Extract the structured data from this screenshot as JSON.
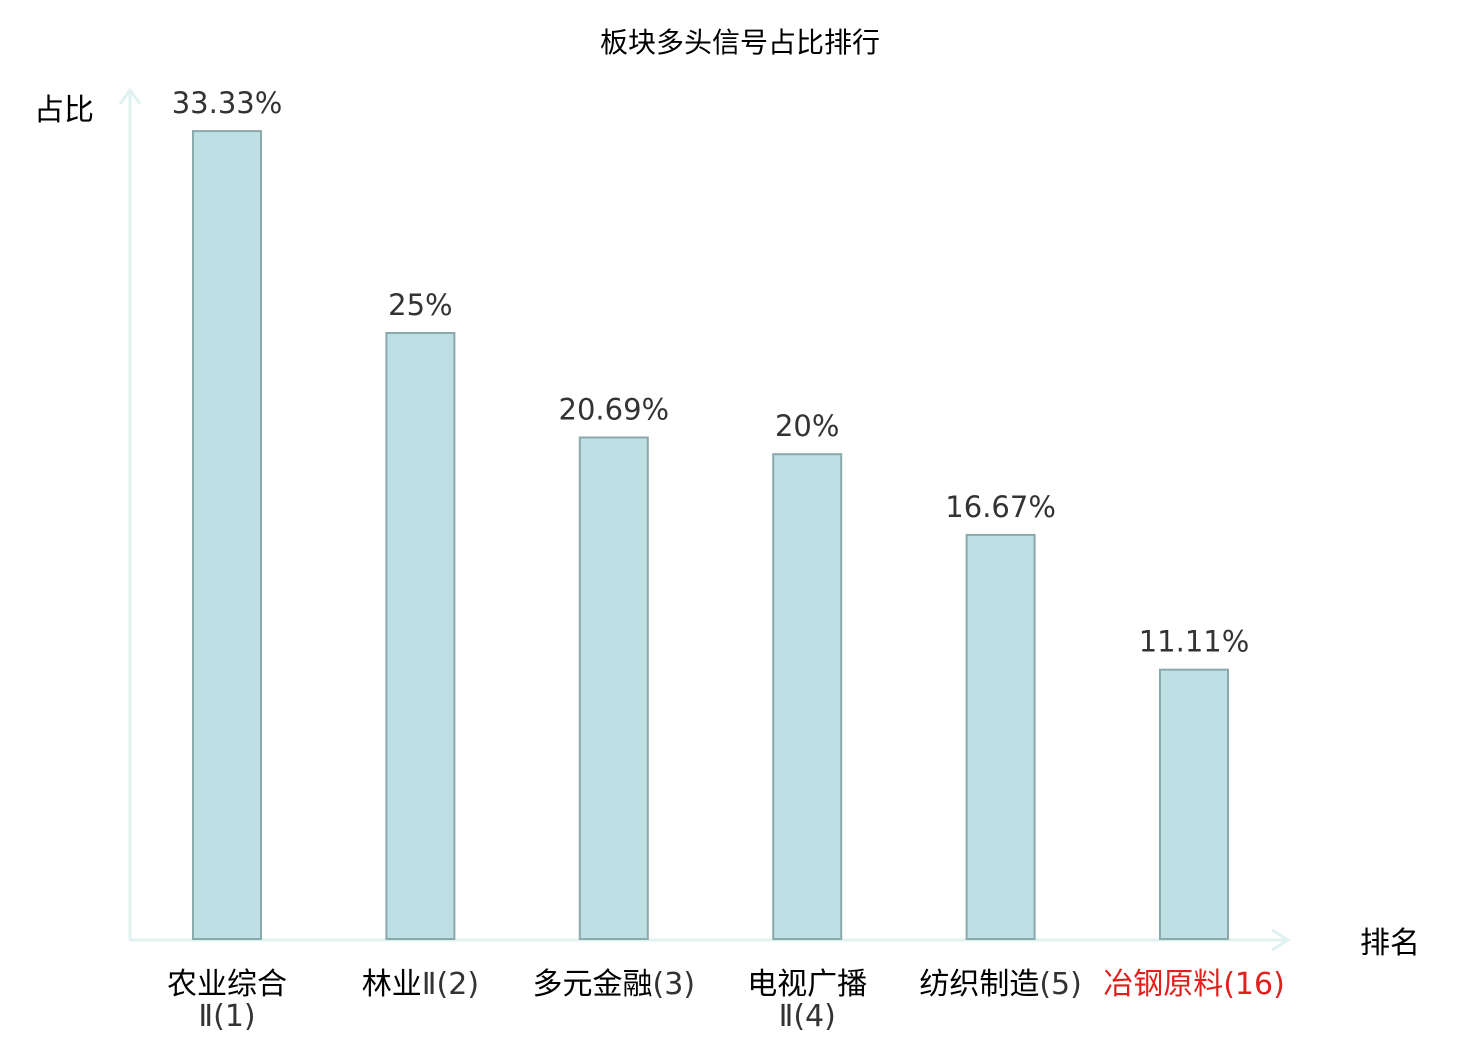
{
  "chart_data": {
    "type": "bar",
    "title": "板块多头信号占比排行",
    "ylabel": "占比",
    "xlabel": "排名",
    "ylim": [
      0,
      35
    ],
    "grid": false,
    "legend": "none",
    "categories": [
      {
        "name": "农业综合",
        "rank": "Ⅱ(1)",
        "two_line": true,
        "highlight": false
      },
      {
        "name": "林业",
        "rank": "Ⅱ(2)",
        "two_line": false,
        "highlight": false
      },
      {
        "name": "多元金融",
        "rank": "(3)",
        "two_line": false,
        "highlight": false
      },
      {
        "name": "电视广播",
        "rank": "Ⅱ(4)",
        "two_line": true,
        "highlight": false
      },
      {
        "name": "纺织制造",
        "rank": "(5)",
        "two_line": false,
        "highlight": false
      },
      {
        "name": "冶钢原料",
        "rank": "(16)",
        "two_line": false,
        "highlight": true
      }
    ],
    "values": [
      33.33,
      25,
      20.69,
      20,
      16.67,
      11.11
    ],
    "value_labels": [
      "33.33%",
      "25%",
      "20.69%",
      "20%",
      "16.67%",
      "11.11%"
    ]
  },
  "colors": {
    "bar_fill": "#bce0e3",
    "bar_stroke": "#8aa9ab",
    "axis": "#e0f2f0",
    "text": "#333333",
    "label_text": "#000000",
    "highlight": "#e0201d"
  }
}
